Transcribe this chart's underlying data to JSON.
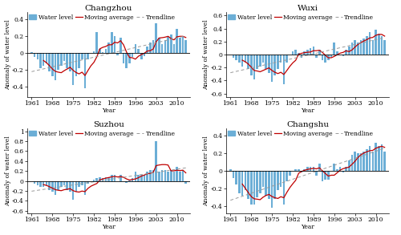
{
  "stations": [
    "Changzhou",
    "Wuxi",
    "Suzhou",
    "Changshu"
  ],
  "years": [
    1961,
    1962,
    1963,
    1964,
    1965,
    1966,
    1967,
    1968,
    1969,
    1970,
    1971,
    1972,
    1973,
    1974,
    1975,
    1976,
    1977,
    1978,
    1979,
    1980,
    1981,
    1982,
    1983,
    1984,
    1985,
    1986,
    1987,
    1988,
    1989,
    1990,
    1991,
    1992,
    1993,
    1994,
    1995,
    1996,
    1997,
    1998,
    1999,
    2000,
    2001,
    2002,
    2003,
    2004,
    2005,
    2006,
    2007,
    2008,
    2009,
    2010,
    2011,
    2012,
    2013
  ],
  "water_level": {
    "Changzhou": [
      0.01,
      -0.05,
      -0.08,
      -0.18,
      -0.15,
      -0.12,
      -0.22,
      -0.28,
      -0.32,
      -0.2,
      -0.15,
      -0.1,
      -0.18,
      -0.22,
      -0.38,
      -0.28,
      -0.18,
      -0.08,
      -0.42,
      -0.08,
      0.0,
      0.02,
      0.25,
      0.05,
      0.01,
      0.05,
      0.12,
      0.25,
      0.2,
      -0.03,
      0.18,
      -0.12,
      -0.18,
      -0.12,
      -0.05,
      0.1,
      0.05,
      -0.08,
      -0.04,
      0.08,
      0.12,
      0.15,
      0.35,
      0.18,
      0.1,
      0.15,
      0.2,
      0.22,
      0.1,
      0.28,
      0.18,
      0.2,
      0.15
    ],
    "Wuxi": [
      0.0,
      -0.05,
      -0.08,
      -0.12,
      -0.18,
      -0.12,
      -0.22,
      -0.32,
      -0.38,
      -0.22,
      -0.18,
      -0.12,
      -0.22,
      -0.28,
      -0.42,
      -0.32,
      -0.22,
      -0.12,
      -0.45,
      -0.12,
      0.0,
      0.05,
      0.08,
      0.02,
      -0.05,
      0.05,
      0.08,
      0.1,
      0.12,
      -0.05,
      0.08,
      -0.08,
      -0.12,
      -0.08,
      -0.04,
      0.18,
      0.05,
      0.0,
      -0.02,
      0.08,
      0.12,
      0.18,
      0.22,
      0.18,
      0.22,
      0.25,
      0.28,
      0.35,
      0.22,
      0.38,
      0.32,
      0.28,
      0.22
    ],
    "Suzhou": [
      0.0,
      -0.05,
      -0.08,
      -0.12,
      -0.12,
      -0.08,
      -0.18,
      -0.22,
      -0.28,
      -0.18,
      -0.12,
      -0.08,
      -0.18,
      -0.22,
      -0.38,
      -0.22,
      -0.12,
      -0.08,
      -0.28,
      -0.05,
      0.0,
      0.02,
      0.05,
      0.08,
      0.05,
      0.08,
      0.08,
      0.12,
      0.12,
      0.0,
      0.12,
      0.0,
      -0.04,
      0.01,
      0.05,
      0.18,
      0.12,
      0.12,
      0.12,
      0.18,
      0.22,
      0.22,
      0.8,
      0.18,
      0.22,
      0.22,
      0.18,
      0.22,
      0.18,
      0.28,
      0.18,
      0.22,
      -0.05
    ],
    "Changshu": [
      0.02,
      -0.08,
      -0.15,
      -0.25,
      -0.28,
      -0.22,
      -0.32,
      -0.38,
      -0.38,
      -0.3,
      -0.25,
      -0.18,
      -0.28,
      -0.32,
      -0.42,
      -0.32,
      -0.22,
      -0.18,
      -0.38,
      -0.12,
      -0.05,
      0.0,
      0.02,
      0.02,
      -0.02,
      0.02,
      0.05,
      0.05,
      0.05,
      -0.05,
      0.08,
      -0.12,
      -0.1,
      -0.1,
      0.0,
      0.08,
      0.02,
      0.05,
      -0.02,
      0.05,
      0.12,
      0.18,
      0.22,
      0.2,
      0.2,
      0.22,
      0.25,
      0.28,
      0.22,
      0.32,
      0.28,
      0.3,
      0.22
    ]
  },
  "ylims": {
    "Changzhou": [
      -0.52,
      0.48
    ],
    "Wuxi": [
      -0.65,
      0.65
    ],
    "Suzhou": [
      -0.65,
      1.05
    ],
    "Changshu": [
      -0.48,
      0.48
    ]
  },
  "yticks": {
    "Changzhou": [
      -0.4,
      -0.2,
      0.0,
      0.2,
      0.4
    ],
    "Wuxi": [
      -0.6,
      -0.4,
      -0.2,
      0.0,
      0.2,
      0.4,
      0.6
    ],
    "Suzhou": [
      -0.6,
      -0.4,
      -0.2,
      0.0,
      0.2,
      0.4,
      0.6,
      0.8,
      1.0
    ],
    "Changshu": [
      -0.4,
      -0.2,
      0.0,
      0.2,
      0.4
    ]
  },
  "xticks": [
    1961,
    1968,
    1975,
    1982,
    1989,
    1996,
    2003,
    2010
  ],
  "bar_color": "#6baed6",
  "ma_color": "#c00000",
  "trend_color": "#999999",
  "bg_color": "#ffffff",
  "title_fontsize": 7.5,
  "tick_fontsize": 5.5,
  "label_fontsize": 5.5,
  "legend_fontsize": 5.5
}
